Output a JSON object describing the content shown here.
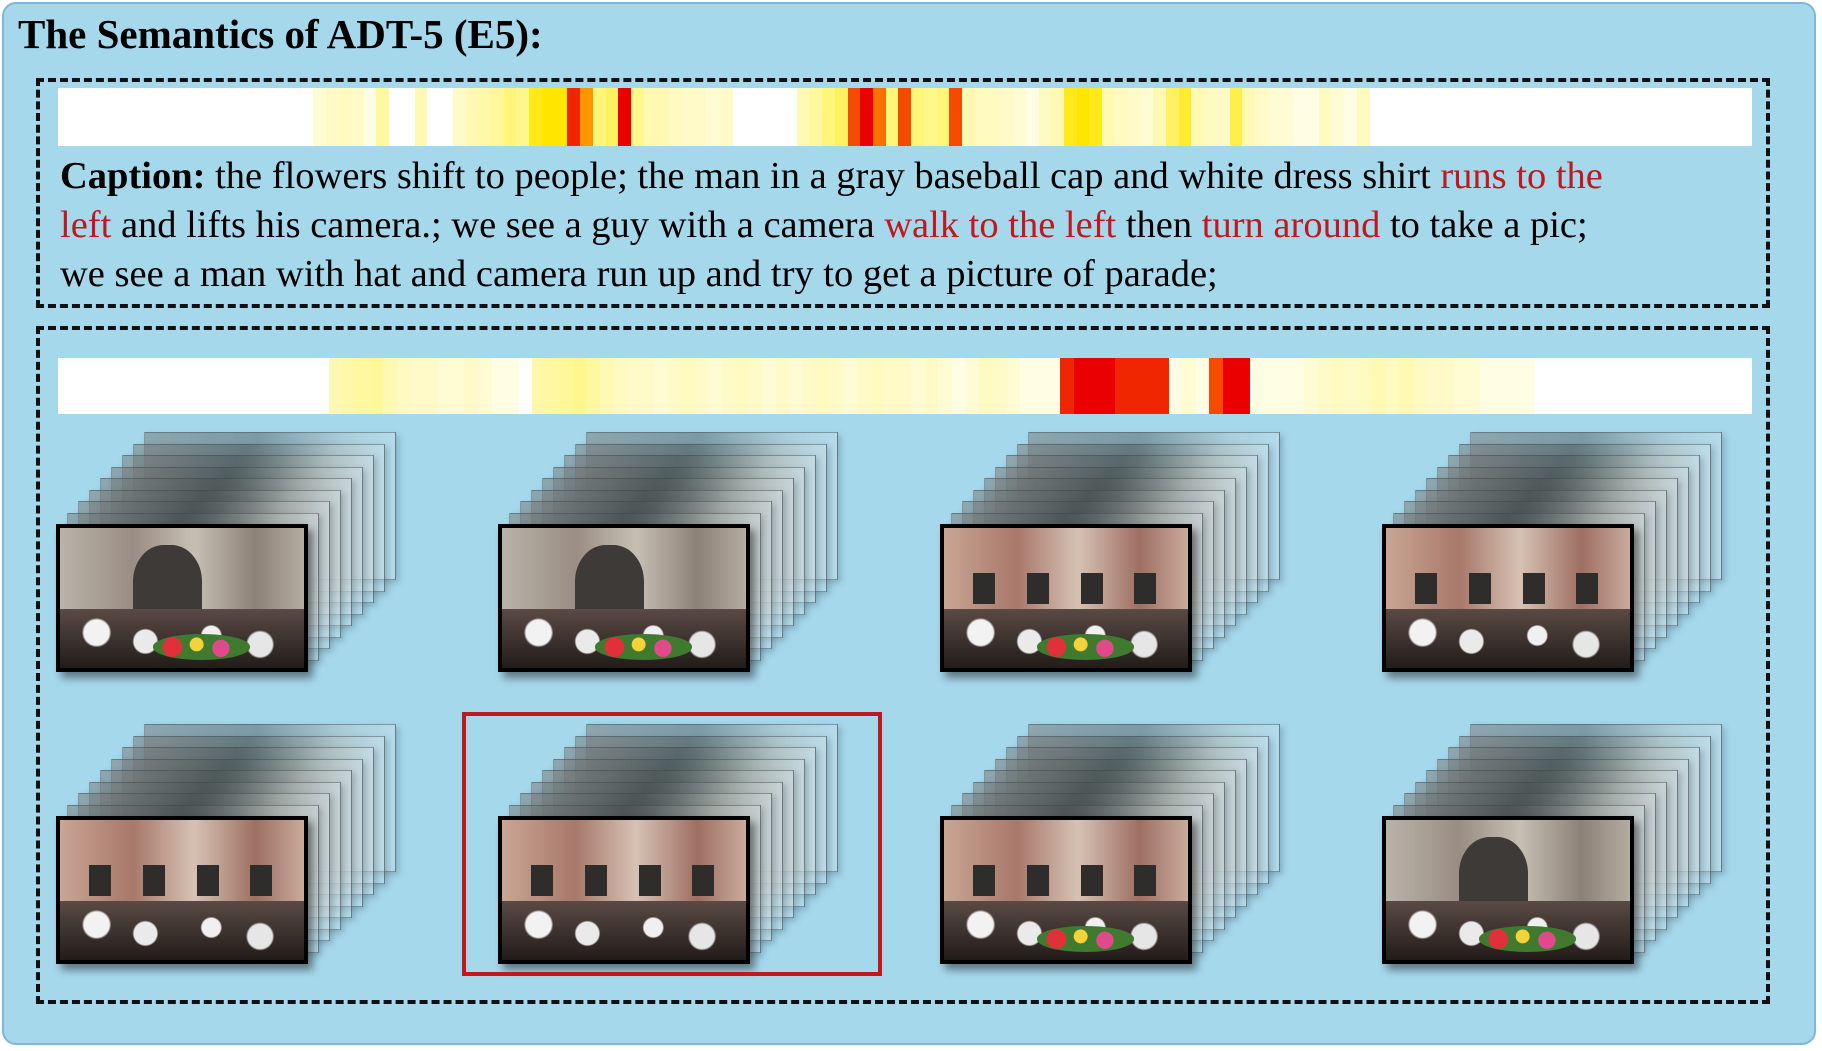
{
  "title": "The Semantics of ADT-5 (E5):",
  "text_heatmap": {
    "weights": [
      0,
      0,
      0,
      0,
      0,
      0,
      0,
      0,
      0,
      0,
      0,
      0,
      0,
      0,
      0,
      0,
      0,
      0,
      0,
      0,
      0.08,
      0.1,
      0.12,
      0.1,
      0.05,
      0.2,
      0,
      0,
      0.15,
      0,
      0,
      0.1,
      0.15,
      0.18,
      0.22,
      0.3,
      0.25,
      0.5,
      0.55,
      0.55,
      0.95,
      0.8,
      0.3,
      0.35,
      1.0,
      0.25,
      0.15,
      0.15,
      0.12,
      0.1,
      0.1,
      0.08,
      0.1,
      0,
      0,
      0,
      0,
      0,
      0.15,
      0.2,
      0.3,
      0.35,
      0.9,
      1.0,
      0.85,
      0.3,
      0.9,
      0.3,
      0.25,
      0.3,
      0.9,
      0.15,
      0.12,
      0.12,
      0.1,
      0.08,
      0.05,
      0.12,
      0.15,
      0.5,
      0.55,
      0.5,
      0.15,
      0.12,
      0.1,
      0.08,
      0.15,
      0.35,
      0.45,
      0.15,
      0.12,
      0.1,
      0.4,
      0.15,
      0.1,
      0.08,
      0.08,
      0.05,
      0.05,
      0.12,
      0.08,
      0.05,
      0.12,
      0,
      0,
      0,
      0,
      0,
      0,
      0,
      0,
      0,
      0,
      0,
      0,
      0,
      0,
      0,
      0,
      0,
      0,
      0,
      0,
      0,
      0,
      0,
      0,
      0,
      0,
      0,
      0,
      0,
      0
    ]
  },
  "caption": {
    "label": "Caption:",
    "line1_a": " the flowers shift to people; the man in a gray baseball cap and white dress shirt ",
    "line1_hl": "runs to the",
    "line2_hl1": "left",
    "line2_a": " and lifts his camera.; we see a guy with a camera ",
    "line2_hl2": "walk to the left",
    "line2_b": " then ",
    "line2_hl3": "turn around",
    "line2_c": " to take a pic;",
    "line3": "we see a man with hat and camera run up and try to get a picture of parade;"
  },
  "video_heatmap": {
    "weights": [
      0,
      0,
      0,
      0,
      0,
      0,
      0,
      0,
      0,
      0,
      0,
      0,
      0,
      0,
      0,
      0,
      0,
      0,
      0,
      0,
      0.15,
      0.18,
      0.2,
      0.22,
      0.15,
      0.12,
      0.1,
      0.1,
      0.08,
      0.08,
      0.1,
      0.08,
      0.05,
      0.05,
      0,
      0.18,
      0.2,
      0.22,
      0.25,
      0.2,
      0.15,
      0.12,
      0.1,
      0.1,
      0.08,
      0.1,
      0.12,
      0.1,
      0.08,
      0.1,
      0.12,
      0.1,
      0.08,
      0.1,
      0.08,
      0.1,
      0.12,
      0.1,
      0.08,
      0.1,
      0.12,
      0.1,
      0.1,
      0.08,
      0.1,
      0.08,
      0.05,
      0.08,
      0.12,
      0.1,
      0.08,
      0.05,
      0.05,
      0.05,
      0.95,
      1.0,
      1.0,
      1.0,
      0.95,
      0.95,
      0.95,
      0.95,
      0.05,
      0.08,
      0.05,
      0.9,
      1.0,
      1.0,
      0.05,
      0.05,
      0.05,
      0.05,
      0.08,
      0.1,
      0.12,
      0.1,
      0.12,
      0.15,
      0.12,
      0.15,
      0.12,
      0.1,
      0.1,
      0.08,
      0.08,
      0.05,
      0.05,
      0.05,
      0.05,
      0,
      0,
      0,
      0,
      0,
      0,
      0,
      0,
      0,
      0,
      0,
      0,
      0,
      0,
      0,
      0
    ]
  },
  "clips": [
    {
      "variant": "arch-sky"
    },
    {
      "variant": "arch-flowers"
    },
    {
      "variant": "crowd-statue"
    },
    {
      "variant": "facade-crowd"
    },
    {
      "variant": "facade-crowd"
    },
    {
      "variant": "facade-crowd",
      "highlighted": true
    },
    {
      "variant": "crowd-statue"
    },
    {
      "variant": "arch-statue"
    }
  ],
  "colors": {
    "panel_bg": "#a6d8ec",
    "highlight_text": "#c0181e",
    "highlight_box": "#c0181e"
  }
}
